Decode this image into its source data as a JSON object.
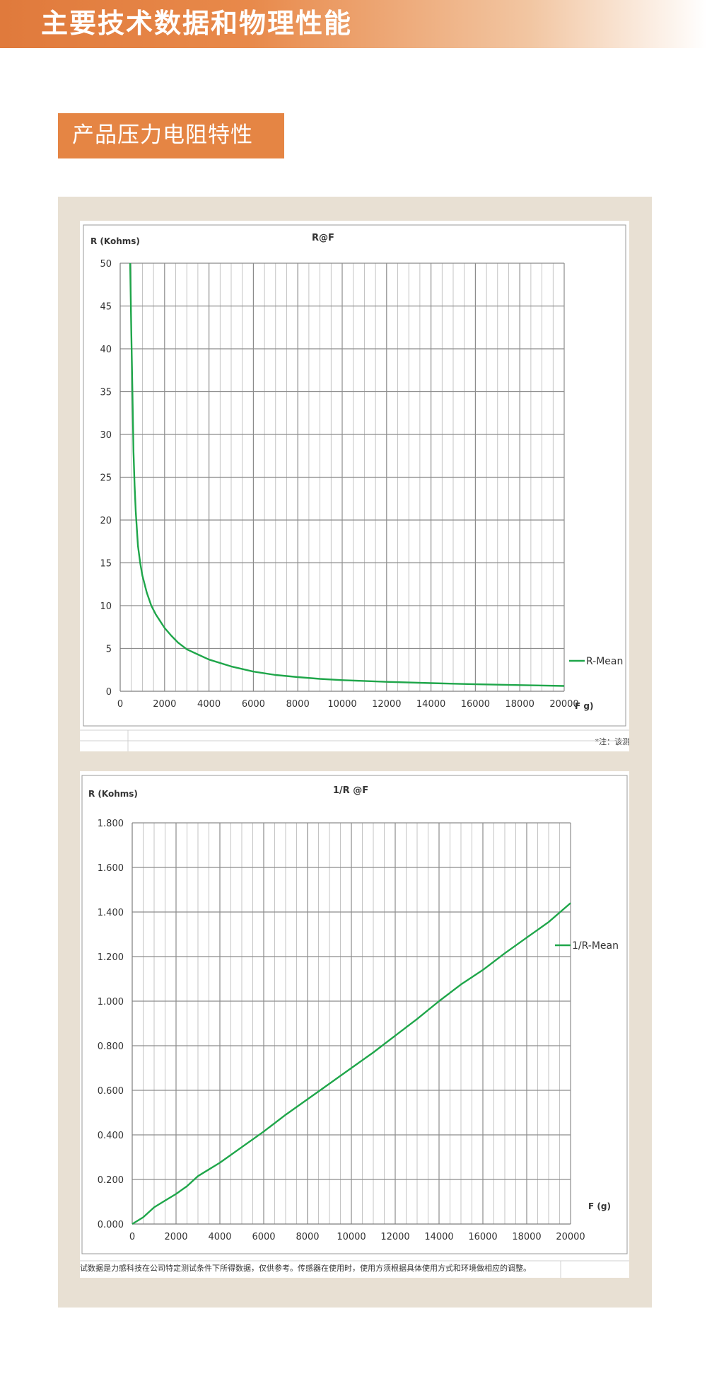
{
  "header": {
    "title": "主要技术数据和物理性能"
  },
  "section": {
    "label": "产品压力电阻特性"
  },
  "chart_data": [
    {
      "type": "line",
      "title": "R@F",
      "xlabel": "F g)",
      "ylabel": "R (Kohms)",
      "xlim": [
        0,
        20000
      ],
      "ylim": [
        0,
        50
      ],
      "x_ticks": [
        0,
        2000,
        4000,
        6000,
        8000,
        10000,
        12000,
        14000,
        16000,
        18000,
        20000
      ],
      "y_ticks": [
        0,
        5,
        10,
        15,
        20,
        25,
        30,
        35,
        40,
        45,
        50
      ],
      "grid": true,
      "legend": "right",
      "series": [
        {
          "name": "R-Mean",
          "color": "#1fa64a",
          "x": [
            450,
            500,
            550,
            600,
            650,
            700,
            800,
            900,
            1000,
            1200,
            1400,
            1600,
            1800,
            2000,
            2300,
            2600,
            3000,
            3500,
            4000,
            5000,
            6000,
            7000,
            8000,
            9000,
            10000,
            12000,
            14000,
            16000,
            18000,
            20000
          ],
          "y": [
            50,
            42,
            35,
            28,
            24,
            21,
            17,
            15,
            13.5,
            11.5,
            10,
            9,
            8.2,
            7.4,
            6.5,
            5.7,
            4.9,
            4.3,
            3.7,
            2.9,
            2.3,
            1.9,
            1.65,
            1.45,
            1.3,
            1.1,
            0.95,
            0.82,
            0.72,
            0.62
          ]
        }
      ],
      "footnote": "*注：该测"
    },
    {
      "type": "line",
      "title": "1/R @F",
      "xlabel": "F (g)",
      "ylabel": "R (Kohms)",
      "xlim": [
        0,
        20000
      ],
      "ylim": [
        0,
        1.8
      ],
      "x_ticks": [
        0,
        2000,
        4000,
        6000,
        8000,
        10000,
        12000,
        14000,
        16000,
        18000,
        20000
      ],
      "y_ticks": [
        "0.000",
        "0.200",
        "0.400",
        "0.600",
        "0.800",
        "1.000",
        "1.200",
        "1.400",
        "1.600",
        "1.800"
      ],
      "grid": true,
      "legend": "right",
      "series": [
        {
          "name": "1/R-Mean",
          "color": "#1fa64a",
          "x": [
            0,
            500,
            1000,
            1500,
            2000,
            2500,
            3000,
            3500,
            4000,
            5000,
            6000,
            7000,
            8000,
            9000,
            10000,
            11000,
            12000,
            13000,
            14000,
            15000,
            16000,
            17000,
            18000,
            19000,
            20000
          ],
          "y": [
            0.0,
            0.03,
            0.075,
            0.105,
            0.135,
            0.17,
            0.215,
            0.245,
            0.275,
            0.345,
            0.415,
            0.49,
            0.56,
            0.63,
            0.7,
            0.77,
            0.845,
            0.92,
            1.0,
            1.075,
            1.14,
            1.215,
            1.285,
            1.355,
            1.44
          ]
        }
      ],
      "footnote": "试数据是力感科技在公司特定测试条件下所得数据，仅供参考。传感器在使用时，使用方须根据具体使用方式和环境做相应的调整。"
    }
  ]
}
